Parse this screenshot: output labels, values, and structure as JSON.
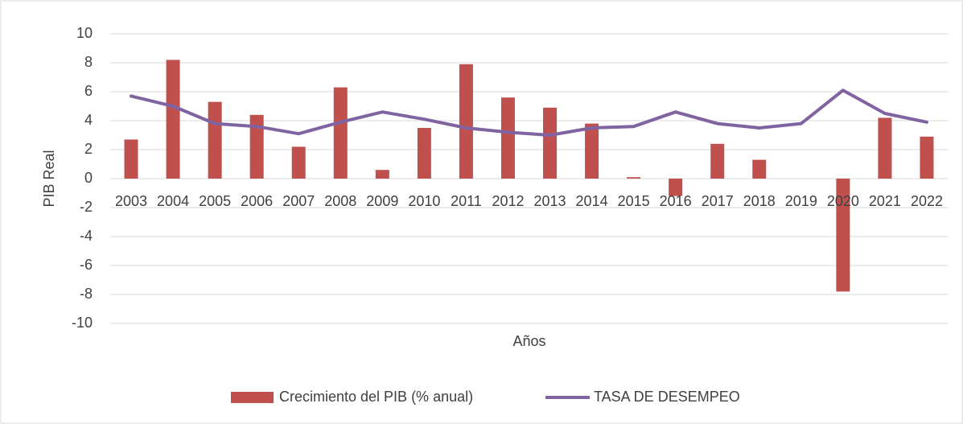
{
  "chart_data": {
    "type": "bar_line",
    "x_label": "Años",
    "y_label": "PIB Real",
    "categories": [
      "2003",
      "2004",
      "2005",
      "2006",
      "2007",
      "2008",
      "2009",
      "2010",
      "2011",
      "2012",
      "2013",
      "2014",
      "2015",
      "2016",
      "2017",
      "2018",
      "2019",
      "2020",
      "2021",
      "2022"
    ],
    "series": [
      {
        "name": "Crecimiento del PIB (% anual)",
        "type": "bar",
        "color": "#c0504d",
        "values": [
          2.7,
          8.2,
          5.3,
          4.4,
          2.2,
          6.3,
          0.6,
          3.5,
          7.9,
          5.6,
          4.9,
          3.8,
          0.1,
          -1.2,
          2.4,
          1.3,
          0,
          -7.8,
          4.2,
          2.9
        ]
      },
      {
        "name": "TASA DE DESEMPEO",
        "type": "line",
        "color": "#8064a2",
        "values": [
          5.7,
          5.0,
          3.8,
          3.6,
          3.1,
          3.9,
          4.6,
          4.1,
          3.5,
          3.2,
          3.0,
          3.5,
          3.6,
          4.6,
          3.8,
          3.5,
          3.8,
          6.1,
          4.5,
          3.9
        ]
      }
    ],
    "ylim": [
      -10,
      10
    ],
    "yticks": [
      -10,
      -8,
      -6,
      -4,
      -2,
      0,
      2,
      4,
      6,
      8,
      10
    ],
    "grid": true,
    "legend": "bottom"
  }
}
